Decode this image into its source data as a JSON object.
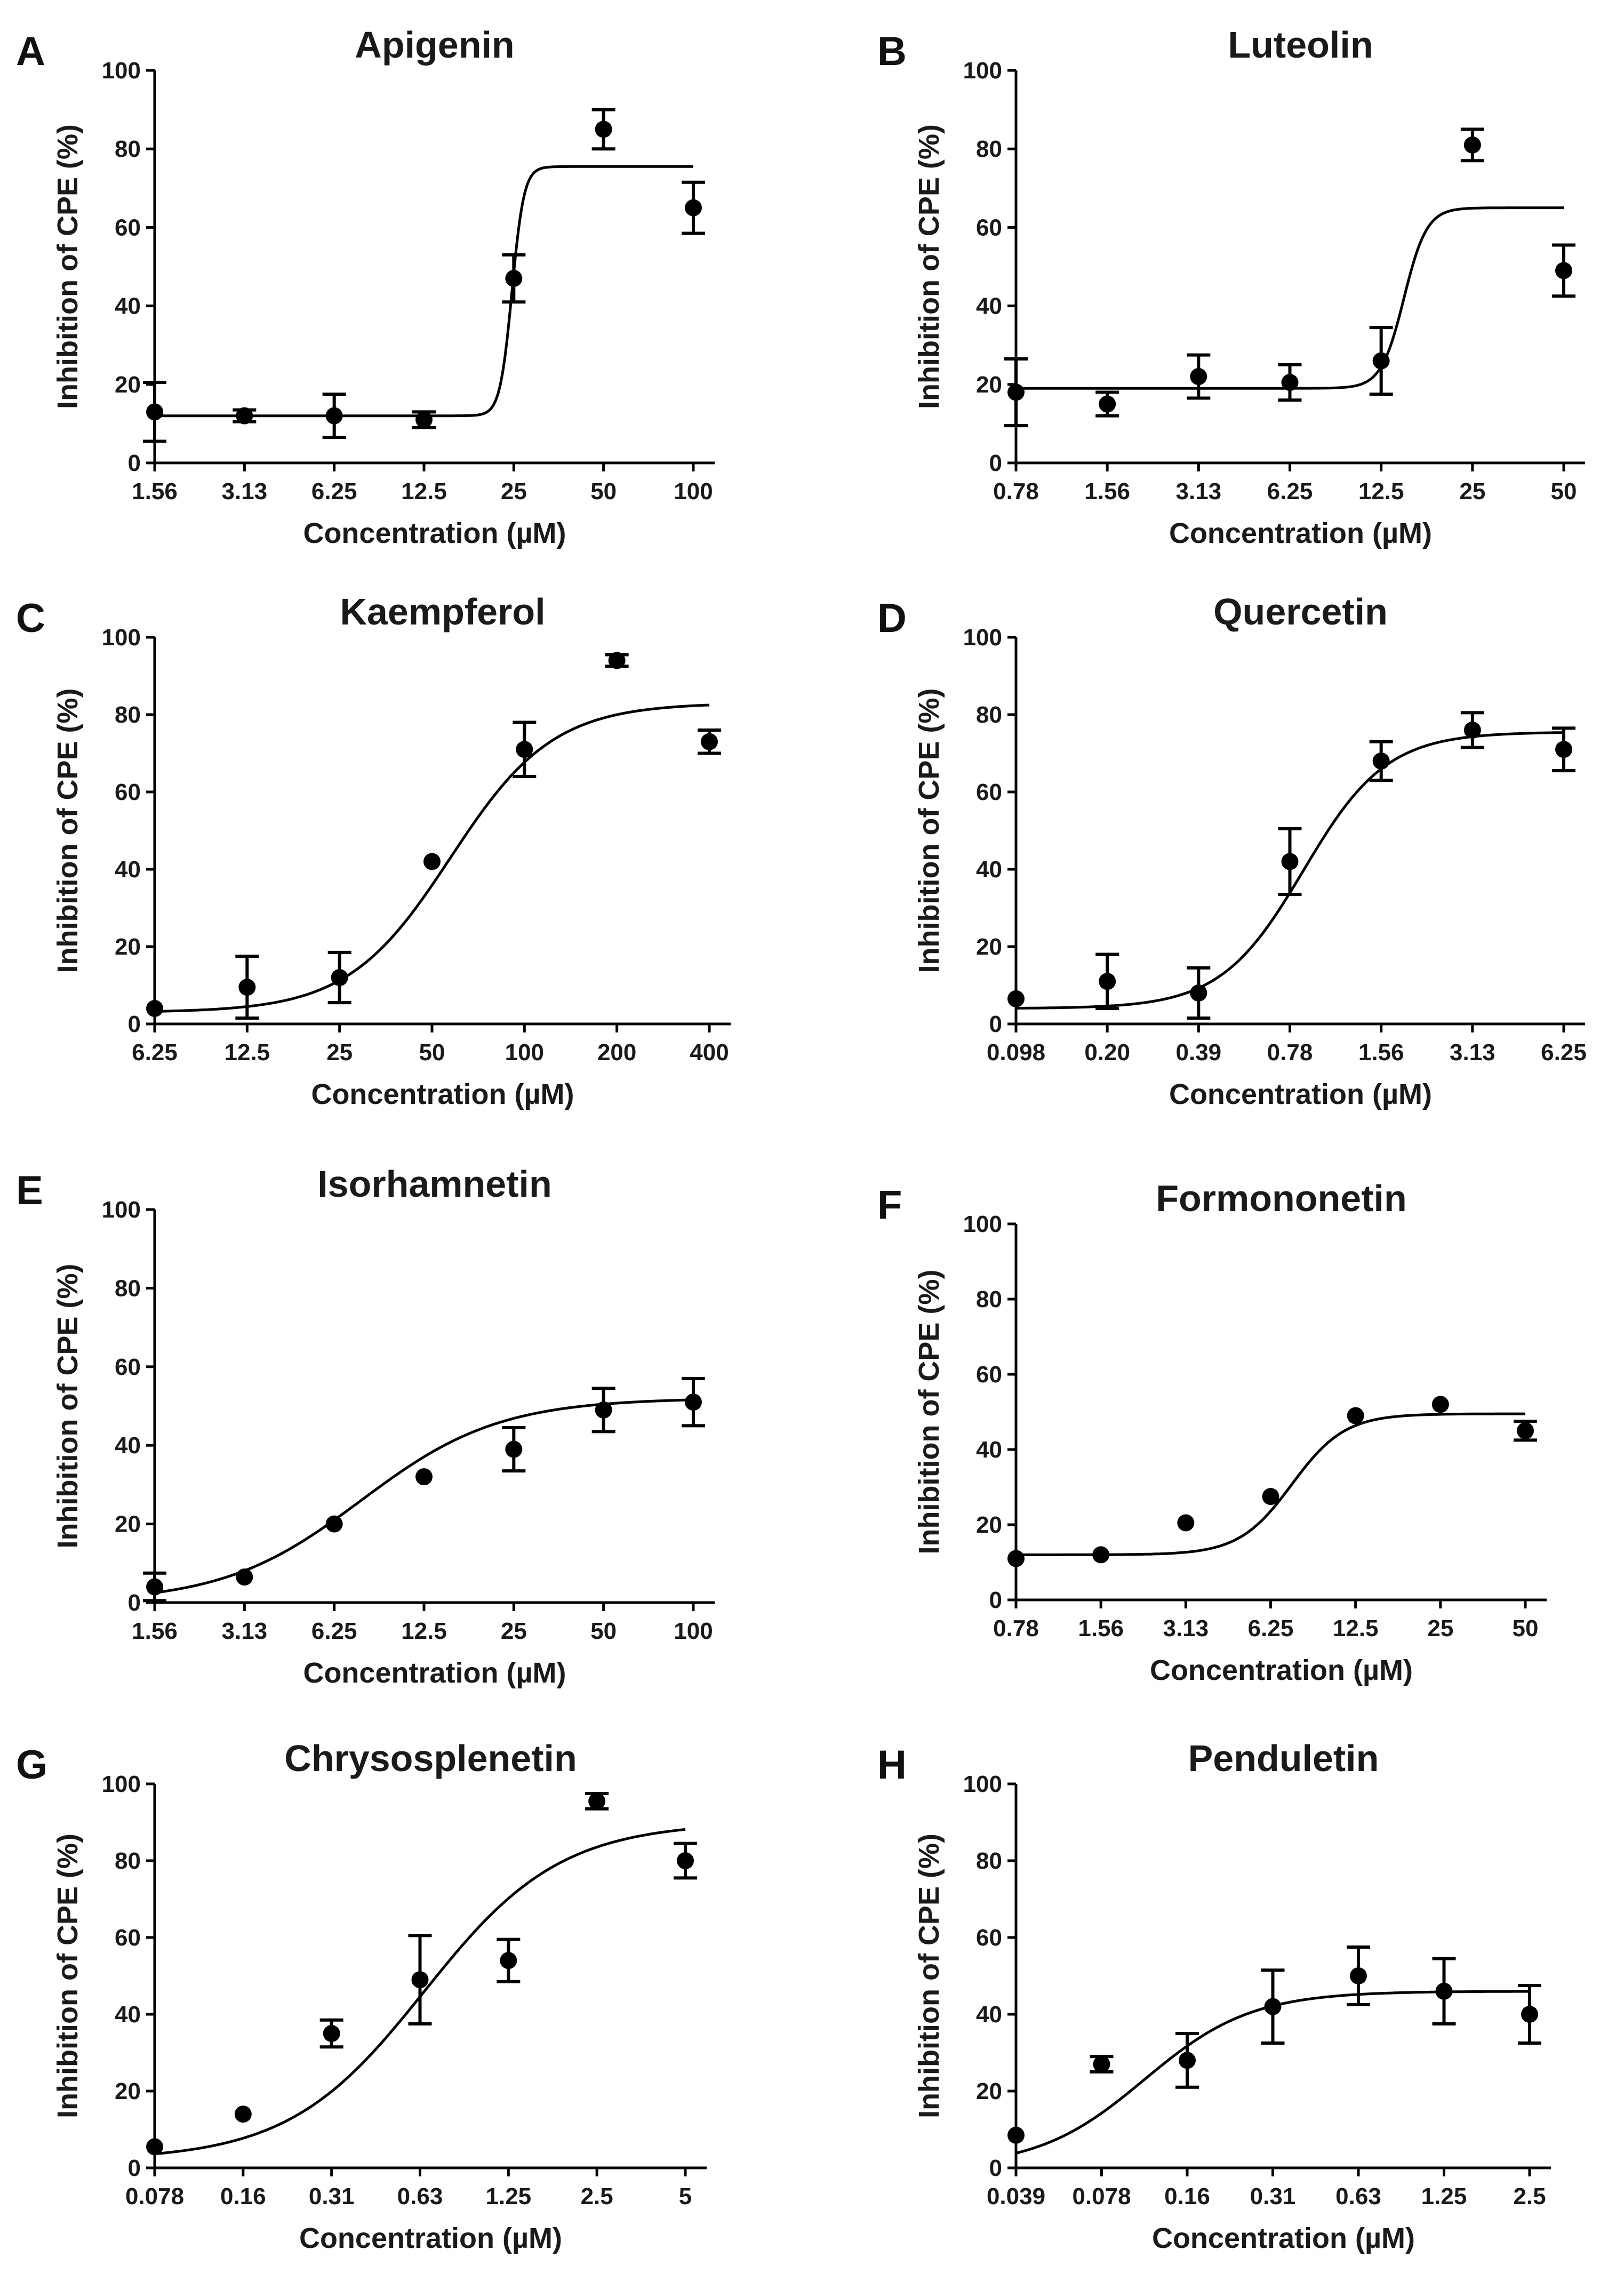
{
  "chart_data": [
    {
      "type": "scatter",
      "panel": "A",
      "title": "Apigenin",
      "xlabel": "Concentration (µM)",
      "ylabel": "Inhibition of CPE (%)",
      "x_ticks": [
        "1.56",
        "3.13",
        "6.25",
        "12.5",
        "25",
        "50",
        "100"
      ],
      "y_ticks": [
        "0",
        "20",
        "40",
        "60",
        "80",
        "100"
      ],
      "ylim": [
        0,
        100
      ],
      "points": [
        {
          "x": 0,
          "y": 13,
          "err": 7.5
        },
        {
          "x": 1,
          "y": 12,
          "err": 1.5
        },
        {
          "x": 2,
          "y": 12,
          "err": 5.5
        },
        {
          "x": 3,
          "y": 11,
          "err": 2
        },
        {
          "x": 4,
          "y": 47,
          "err": 6
        },
        {
          "x": 5,
          "y": 85,
          "err": 5
        },
        {
          "x": 6,
          "y": 65,
          "err": 6.5
        }
      ],
      "fit": {
        "bottom": 12,
        "top": 75.5,
        "logx50": 3.98,
        "hill": 15
      }
    },
    {
      "type": "scatter",
      "panel": "B",
      "title": "Luteolin",
      "xlabel": "Concentration (µM)",
      "ylabel": "Inhibition of CPE (%)",
      "x_ticks": [
        "0.78",
        "1.56",
        "3.13",
        "6.25",
        "12.5",
        "25",
        "50"
      ],
      "y_ticks": [
        "0",
        "20",
        "40",
        "60",
        "80",
        "100"
      ],
      "ylim": [
        0,
        100
      ],
      "points": [
        {
          "x": 0,
          "y": 18,
          "err": 8.5
        },
        {
          "x": 1,
          "y": 15,
          "err": 3
        },
        {
          "x": 2,
          "y": 22,
          "err": 5.5
        },
        {
          "x": 3,
          "y": 20.5,
          "err": 4.5
        },
        {
          "x": 4,
          "y": 26,
          "err": 8.5
        },
        {
          "x": 5,
          "y": 81,
          "err": 4
        },
        {
          "x": 6,
          "y": 49,
          "err": 6.5
        }
      ],
      "fit": {
        "bottom": 19,
        "top": 65,
        "logx50": 4.25,
        "hill": 8
      }
    },
    {
      "type": "scatter",
      "panel": "C",
      "title": "Kaempferol",
      "xlabel": "Concentration (µM)",
      "ylabel": "Inhibition of CPE (%)",
      "x_ticks": [
        "6.25",
        "12.5",
        "25",
        "50",
        "100",
        "200",
        "400"
      ],
      "y_ticks": [
        "0",
        "20",
        "40",
        "60",
        "80",
        "100"
      ],
      "ylim": [
        0,
        100
      ],
      "points": [
        {
          "x": 0,
          "y": 4,
          "err": 0
        },
        {
          "x": 1,
          "y": 9.5,
          "err": 8
        },
        {
          "x": 2,
          "y": 12,
          "err": 6.5
        },
        {
          "x": 3,
          "y": 42,
          "err": 0
        },
        {
          "x": 4,
          "y": 71,
          "err": 7
        },
        {
          "x": 5,
          "y": 94,
          "err": 1.5
        },
        {
          "x": 6,
          "y": 73,
          "err": 3
        }
      ],
      "fit": {
        "bottom": 3,
        "top": 83,
        "logx50": 3.2,
        "hill": 1.8
      }
    },
    {
      "type": "scatter",
      "panel": "D",
      "title": "Quercetin",
      "xlabel": "Concentration (µM)",
      "ylabel": "Inhibition of CPE (%)",
      "x_ticks": [
        "0.098",
        "0.20",
        "0.39",
        "0.78",
        "1.56",
        "3.13",
        "6.25"
      ],
      "y_ticks": [
        "0",
        "20",
        "40",
        "60",
        "80",
        "100"
      ],
      "ylim": [
        0,
        100
      ],
      "points": [
        {
          "x": 0,
          "y": 6.5,
          "err": 0
        },
        {
          "x": 1,
          "y": 11,
          "err": 7
        },
        {
          "x": 2,
          "y": 8,
          "err": 6.5
        },
        {
          "x": 3,
          "y": 42,
          "err": 8.5
        },
        {
          "x": 4,
          "y": 68,
          "err": 5
        },
        {
          "x": 5,
          "y": 76,
          "err": 4.5
        },
        {
          "x": 6,
          "y": 71,
          "err": 5.5
        }
      ],
      "fit": {
        "bottom": 4,
        "top": 75.5,
        "logx50": 3.15,
        "hill": 2.2
      }
    },
    {
      "type": "scatter",
      "panel": "E",
      "title": "Isorhamnetin",
      "xlabel": "Concentration (µM)",
      "ylabel": "Inhibition of CPE (%)",
      "x_ticks": [
        "1.56",
        "3.13",
        "6.25",
        "12.5",
        "25",
        "50",
        "100"
      ],
      "y_ticks": [
        "0",
        "20",
        "40",
        "60",
        "80",
        "100"
      ],
      "ylim": [
        0,
        100
      ],
      "points": [
        {
          "x": 0,
          "y": 4,
          "err": 3.5
        },
        {
          "x": 1,
          "y": 6.5,
          "err": 0
        },
        {
          "x": 2,
          "y": 20,
          "err": 0
        },
        {
          "x": 3,
          "y": 32,
          "err": 0
        },
        {
          "x": 4,
          "y": 39,
          "err": 5.5
        },
        {
          "x": 5,
          "y": 49,
          "err": 5.5
        },
        {
          "x": 6,
          "y": 51,
          "err": 6
        }
      ],
      "fit": {
        "bottom": 0,
        "top": 52,
        "logx50": 2.3,
        "hill": 1.3
      }
    },
    {
      "type": "scatter",
      "panel": "F",
      "title": "Formononetin",
      "xlabel": "Concentration (µM)",
      "ylabel": "Inhibition of CPE (%)",
      "x_ticks": [
        "0.78",
        "1.56",
        "3.13",
        "6.25",
        "12.5",
        "25",
        "50"
      ],
      "y_ticks": [
        "0",
        "20",
        "40",
        "60",
        "80",
        "100"
      ],
      "ylim": [
        0,
        100
      ],
      "points": [
        {
          "x": 0,
          "y": 11,
          "err": 0
        },
        {
          "x": 1,
          "y": 12,
          "err": 0
        },
        {
          "x": 2,
          "y": 20.5,
          "err": 0
        },
        {
          "x": 3,
          "y": 27.5,
          "err": 0
        },
        {
          "x": 4,
          "y": 49,
          "err": 0
        },
        {
          "x": 5,
          "y": 52,
          "err": 0
        },
        {
          "x": 6,
          "y": 45,
          "err": 2.5
        }
      ],
      "fit": {
        "bottom": 12,
        "top": 49.5,
        "logx50": 3.25,
        "hill": 3.2
      }
    },
    {
      "type": "scatter",
      "panel": "G",
      "title": "Chrysosplenetin",
      "xlabel": "Concentration (µM)",
      "ylabel": "Inhibition of CPE (%)",
      "x_ticks": [
        "0.078",
        "0.16",
        "0.31",
        "0.63",
        "1.25",
        "2.5",
        "5"
      ],
      "y_ticks": [
        "0",
        "20",
        "40",
        "60",
        "80",
        "100"
      ],
      "ylim": [
        0,
        100
      ],
      "points": [
        {
          "x": 0,
          "y": 5.5,
          "err": 0
        },
        {
          "x": 1,
          "y": 14,
          "err": 0
        },
        {
          "x": 2,
          "y": 35,
          "err": 3.5
        },
        {
          "x": 3,
          "y": 49,
          "err": 11.5
        },
        {
          "x": 4,
          "y": 54,
          "err": 5.5
        },
        {
          "x": 5,
          "y": 95.5,
          "err": 2
        },
        {
          "x": 6,
          "y": 80,
          "err": 4.5
        }
      ],
      "fit": {
        "bottom": 2,
        "top": 90,
        "logx50": 3.05,
        "hill": 1.3
      }
    },
    {
      "type": "scatter",
      "panel": "H",
      "title": "Penduletin",
      "xlabel": "Concentration (µM)",
      "ylabel": "Inhibition of CPE (%)",
      "x_ticks": [
        "0.039",
        "0.078",
        "0.16",
        "0.31",
        "0.63",
        "1.25",
        "2.5"
      ],
      "y_ticks": [
        "0",
        "20",
        "40",
        "60",
        "80",
        "100"
      ],
      "ylim": [
        0,
        100
      ],
      "points": [
        {
          "x": 0,
          "y": 8.5,
          "err": 0
        },
        {
          "x": 1,
          "y": 27,
          "err": 2
        },
        {
          "x": 2,
          "y": 28,
          "err": 7
        },
        {
          "x": 3,
          "y": 42,
          "err": 9.5
        },
        {
          "x": 4,
          "y": 50,
          "err": 7.5
        },
        {
          "x": 5,
          "y": 46,
          "err": 8.5
        },
        {
          "x": 6,
          "y": 40,
          "err": 7.5
        }
      ],
      "fit": {
        "bottom": 0,
        "top": 46,
        "logx50": 1.5,
        "hill": 1.6
      }
    }
  ]
}
